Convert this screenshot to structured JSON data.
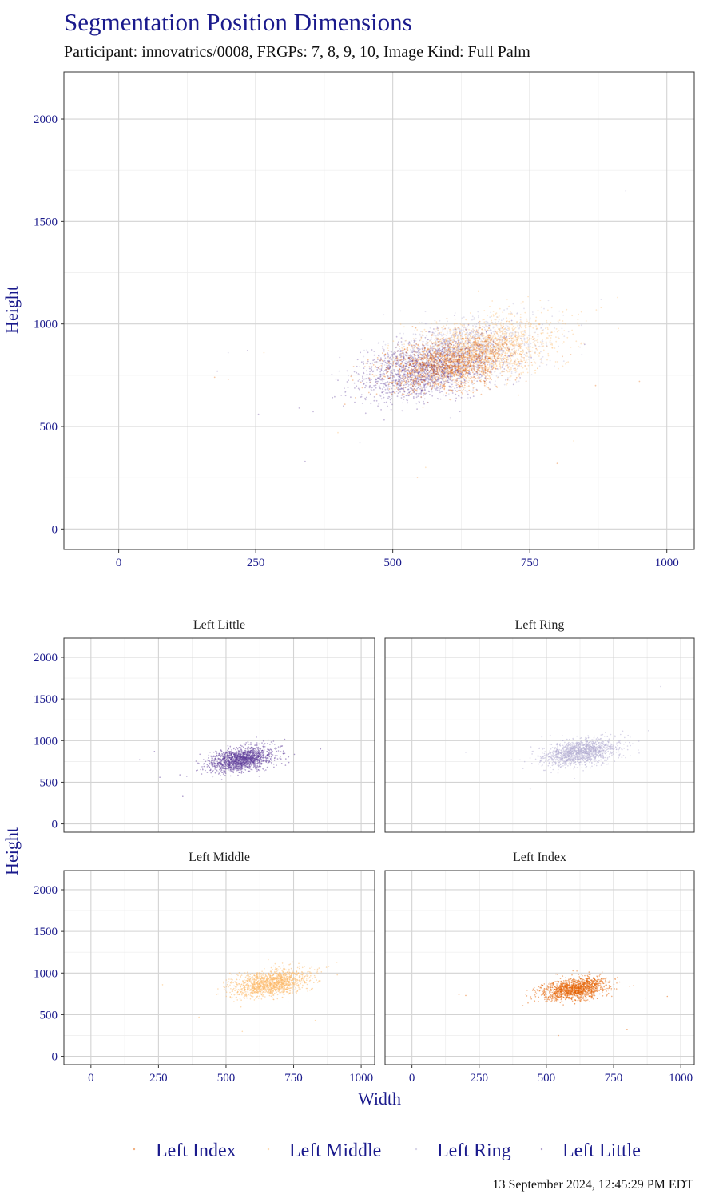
{
  "chart_data": {
    "type": "scatter",
    "title": "Segmentation Position Dimensions",
    "subtitle": "Participant: innovatrics/0008, FRGPs: 7, 8, 9, 10, Image Kind: Full Palm",
    "xlabel": "Width",
    "ylabel": "Height",
    "xlim": [
      -100,
      1050
    ],
    "ylim": [
      -100,
      2230
    ],
    "x_ticks": [
      "0",
      "250",
      "500",
      "750",
      "1000"
    ],
    "y_ticks": [
      "0",
      "500",
      "1000",
      "1500",
      "2000"
    ],
    "grid": true,
    "legend_position": "bottom",
    "legend": [
      "Left Index",
      "Left Middle",
      "Left Ring",
      "Left Little"
    ],
    "footer": "13 September 2024, 12:45:29 PM EDT",
    "series": [
      {
        "name": "Left Little",
        "color": "#5e3c99",
        "center": [
          555,
          775
        ],
        "spread": [
          60,
          75
        ],
        "correlation": 0.35,
        "n": 1500,
        "outliers": [
          [
            255,
            560
          ],
          [
            180,
            770
          ],
          [
            340,
            330
          ],
          [
            850,
            900
          ],
          [
            235,
            870
          ],
          [
            410,
            600
          ]
        ]
      },
      {
        "name": "Left Ring",
        "color": "#b2abd2",
        "center": [
          625,
          860
        ],
        "spread": [
          68,
          80
        ],
        "correlation": 0.35,
        "n": 1400,
        "outliers": [
          [
            925,
            1650
          ],
          [
            370,
            770
          ],
          [
            440,
            420
          ],
          [
            880,
            1120
          ],
          [
            200,
            860
          ]
        ]
      },
      {
        "name": "Left Middle",
        "color": "#fdb863",
        "center": [
          665,
          880
        ],
        "spread": [
          70,
          80
        ],
        "correlation": 0.35,
        "n": 1400,
        "outliers": [
          [
            830,
            430
          ],
          [
            265,
            860
          ],
          [
            400,
            470
          ],
          [
            560,
            300
          ],
          [
            880,
            1080
          ]
        ]
      },
      {
        "name": "Left Index",
        "color": "#e66101",
        "center": [
          610,
          810
        ],
        "spread": [
          62,
          70
        ],
        "correlation": 0.35,
        "n": 1400,
        "outliers": [
          [
            800,
            320
          ],
          [
            175,
            740
          ],
          [
            545,
            250
          ],
          [
            950,
            720
          ],
          [
            870,
            700
          ],
          [
            200,
            730
          ]
        ]
      }
    ],
    "facets": [
      {
        "title": "Left Little",
        "series": "Left Little"
      },
      {
        "title": "Left Ring",
        "series": "Left Ring"
      },
      {
        "title": "Left Middle",
        "series": "Left Middle"
      },
      {
        "title": "Left Index",
        "series": "Left Index"
      }
    ],
    "overlay_order": [
      "Left Ring",
      "Left Middle",
      "Left Little",
      "Left Index"
    ]
  }
}
